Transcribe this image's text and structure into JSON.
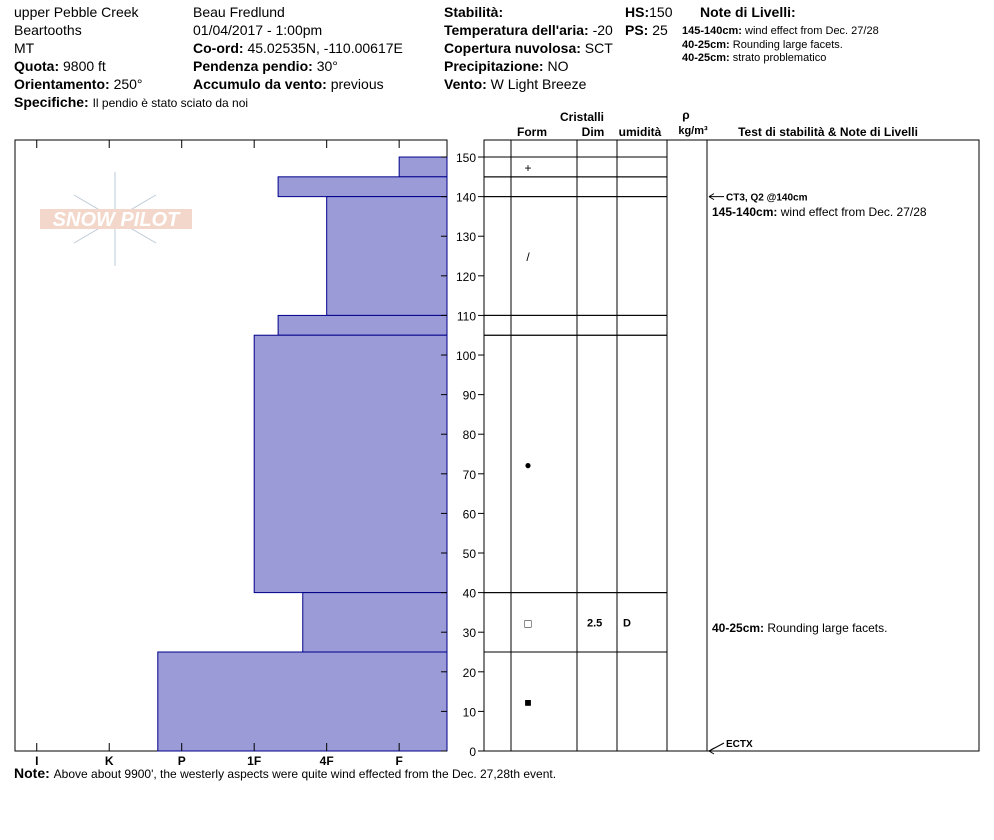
{
  "header": {
    "location": "upper Pebble Creek",
    "range": "Beartooths",
    "state": "MT",
    "elevation": {
      "label": "Quota:",
      "value": "9800 ft"
    },
    "aspect": {
      "label": "Orientamento:",
      "value": "250°"
    },
    "specifics": {
      "label": "Specifiche:",
      "value": "Il pendio è stato sciato da noi"
    },
    "observer": "Beau  Fredlund",
    "datetime": "01/04/2017 - 1:00pm",
    "coords": {
      "label": "Co-ord:",
      "value": "45.02535N, -110.00617E"
    },
    "slope": {
      "label": "Pendenza pendio:",
      "value": "30°"
    },
    "wind_loading": {
      "label": "Accumulo da vento:",
      "value": "previous"
    },
    "stability": {
      "label": "Stabilità:"
    },
    "air_temp": {
      "label": "Temperatura dell'aria:",
      "value": "-20"
    },
    "sky": {
      "label": "Copertura nuvolosa:",
      "value": "SCT"
    },
    "precip": {
      "label": "Precipitazione:",
      "value": "NO"
    },
    "wind": {
      "label": "Vento:",
      "value": "W Light Breeze"
    },
    "hs": {
      "label": "HS:",
      "value": "150"
    },
    "ps": {
      "label": "PS:",
      "value": "25"
    },
    "layer_notes": {
      "title": "Note di Livelli:",
      "items": [
        {
          "range": "145-140cm:",
          "text": "wind effect from Dec. 27/28"
        },
        {
          "range": "40-25cm:",
          "text": "Rounding large facets."
        },
        {
          "range": "40-25cm:",
          "text": "strato problematico"
        }
      ]
    }
  },
  "logo": "SNOW PILOT",
  "columns": {
    "crystals": "Cristalli",
    "form": "Form",
    "size": "Dim",
    "moisture": "umidità",
    "density": "ρ",
    "density_unit": "kg/m³",
    "tests": "Test di stabilità & Note di Livelli"
  },
  "profile": {
    "xlim": [
      6.3,
      0.34
    ],
    "ylim": [
      0,
      154.3
    ],
    "xticks": [
      {
        "value": 6,
        "label": "I"
      },
      {
        "value": 5,
        "label": "K"
      },
      {
        "value": 4,
        "label": "P"
      },
      {
        "value": 3,
        "label": "1F"
      },
      {
        "value": 2,
        "label": "4F"
      },
      {
        "value": 1,
        "label": "F"
      }
    ],
    "yticks": [
      0,
      10,
      20,
      30,
      40,
      50,
      60,
      70,
      80,
      90,
      100,
      110,
      120,
      130,
      140,
      150
    ],
    "layers": [
      {
        "top": 150,
        "bottom": 145,
        "hardness": 1,
        "form": "+"
      },
      {
        "top": 145,
        "bottom": 140,
        "hardness": 2.67
      },
      {
        "top": 140,
        "bottom": 110,
        "hardness": 2,
        "form": "/"
      },
      {
        "top": 110,
        "bottom": 105,
        "hardness": 2.67
      },
      {
        "top": 105,
        "bottom": 40,
        "hardness": 3,
        "form": "●"
      },
      {
        "top": 40,
        "bottom": 25,
        "hardness": 2.33,
        "form": "□",
        "size": "2.5",
        "moisture": "D"
      },
      {
        "top": 25,
        "bottom": 0,
        "hardness": 4.33,
        "form": "■"
      }
    ]
  },
  "tests": [
    {
      "label": "CT3, Q2 @140cm",
      "depth": 140
    },
    {
      "label": "ECTX",
      "depth": 0
    }
  ],
  "notes_right": [
    {
      "range": "145-140cm:",
      "text": "wind effect from Dec. 27/28"
    },
    {
      "range": "40-25cm:",
      "text": "Rounding large facets."
    }
  ],
  "footer": {
    "label": "Note:",
    "text": "Above about 9900', the westerly aspects were quite wind effected from the Dec. 27,28th event."
  }
}
